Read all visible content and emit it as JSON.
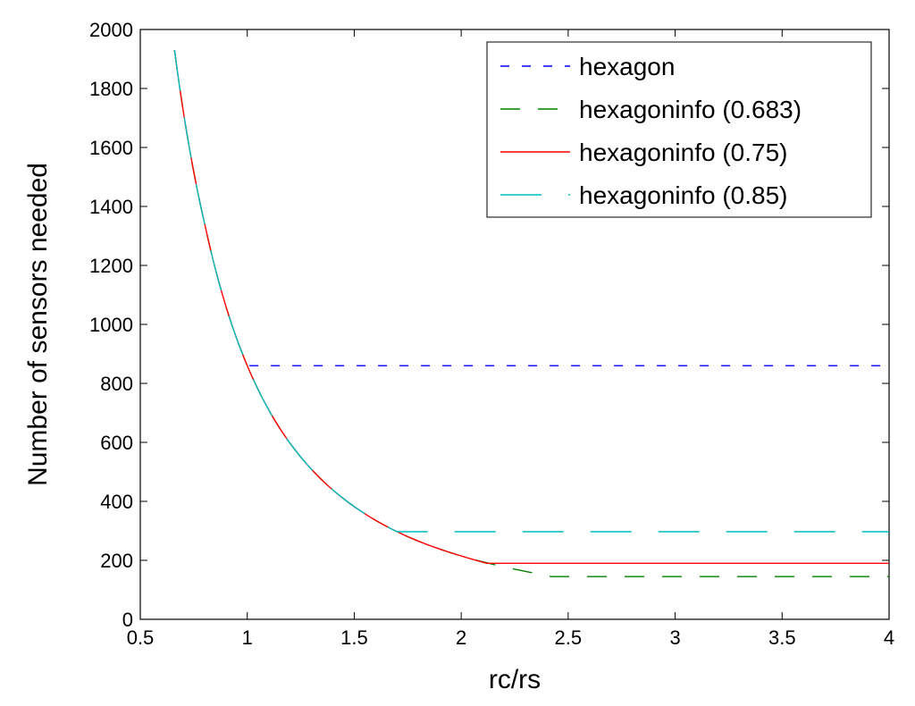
{
  "chart_data": {
    "type": "line",
    "title": "",
    "xlabel": "rc/rs",
    "ylabel": "Number of sensors needed",
    "xlim": [
      0.5,
      4
    ],
    "ylim": [
      0,
      2000
    ],
    "xticks": [
      "0.5",
      "1",
      "1.5",
      "2",
      "2.5",
      "3",
      "3.5",
      "4"
    ],
    "yticks": [
      "0",
      "200",
      "400",
      "600",
      "800",
      "1000",
      "1200",
      "1400",
      "1600",
      "1800",
      "2000"
    ],
    "grid": false,
    "legend_position": "top-right",
    "curve_model": "N(r) = 860 / r^2, flat after saturation point",
    "series": [
      {
        "name": "hexagon",
        "color": "#0000ff",
        "dash": "10,14",
        "points": [
          [
            1.01,
            860
          ],
          [
            4.0,
            860
          ]
        ]
      },
      {
        "name": "hexagoninfo (0.683)",
        "color": "#008000",
        "dash": "22,20",
        "points": [
          [
            0.66,
            1930
          ],
          [
            0.8,
            1344
          ],
          [
            1.0,
            860
          ],
          [
            1.2,
            597
          ],
          [
            1.5,
            382
          ],
          [
            1.8,
            265
          ],
          [
            2.0,
            215
          ],
          [
            2.2,
            178
          ],
          [
            2.4,
            149
          ],
          [
            2.42,
            145
          ],
          [
            4.0,
            145
          ]
        ]
      },
      {
        "name": "hexagoninfo (0.75)",
        "color": "#ff0000",
        "dash": "none",
        "points": [
          [
            0.66,
            1930
          ],
          [
            0.8,
            1344
          ],
          [
            1.0,
            860
          ],
          [
            1.2,
            597
          ],
          [
            1.5,
            382
          ],
          [
            1.8,
            265
          ],
          [
            2.0,
            215
          ],
          [
            2.12,
            190
          ],
          [
            4.0,
            190
          ]
        ]
      },
      {
        "name": "hexagoninfo (0.85)",
        "color": "#00bfbf",
        "dash": "46,30",
        "points": [
          [
            0.66,
            1930
          ],
          [
            0.8,
            1344
          ],
          [
            1.0,
            860
          ],
          [
            1.2,
            597
          ],
          [
            1.4,
            439
          ],
          [
            1.6,
            336
          ],
          [
            1.7,
            297
          ],
          [
            4.0,
            297
          ]
        ]
      }
    ]
  }
}
